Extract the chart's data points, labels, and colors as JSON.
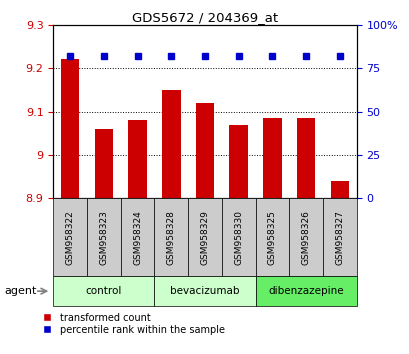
{
  "title": "GDS5672 / 204369_at",
  "samples": [
    "GSM958322",
    "GSM958323",
    "GSM958324",
    "GSM958328",
    "GSM958329",
    "GSM958330",
    "GSM958325",
    "GSM958326",
    "GSM958327"
  ],
  "bar_values": [
    9.22,
    9.06,
    9.08,
    9.15,
    9.12,
    9.07,
    9.085,
    9.085,
    8.94
  ],
  "percentile_values": [
    82,
    82,
    82,
    82,
    82,
    82,
    82,
    82,
    82
  ],
  "bar_color": "#cc0000",
  "dot_color": "#0000cc",
  "ylim": [
    8.9,
    9.3
  ],
  "yticks_left": [
    8.9,
    9.0,
    9.1,
    9.2,
    9.3
  ],
  "yticks_left_labels": [
    "8.9",
    "9",
    "9.1",
    "9.2",
    "9.3"
  ],
  "yticks_right": [
    0,
    25,
    50,
    75,
    100
  ],
  "yticks_right_labels": [
    "0",
    "25",
    "50",
    "75",
    "100%"
  ],
  "groups": [
    {
      "label": "control",
      "indices": [
        0,
        1,
        2
      ],
      "color": "#ccffcc"
    },
    {
      "label": "bevacizumab",
      "indices": [
        3,
        4,
        5
      ],
      "color": "#ccffcc"
    },
    {
      "label": "dibenzazepine",
      "indices": [
        6,
        7,
        8
      ],
      "color": "#66ee66"
    }
  ],
  "agent_label": "agent",
  "legend_bar_label": "transformed count",
  "legend_dot_label": "percentile rank within the sample",
  "tick_color_left": "#cc0000",
  "tick_color_right": "#0000cc",
  "xtick_box_color": "#cccccc",
  "bar_width": 0.55
}
